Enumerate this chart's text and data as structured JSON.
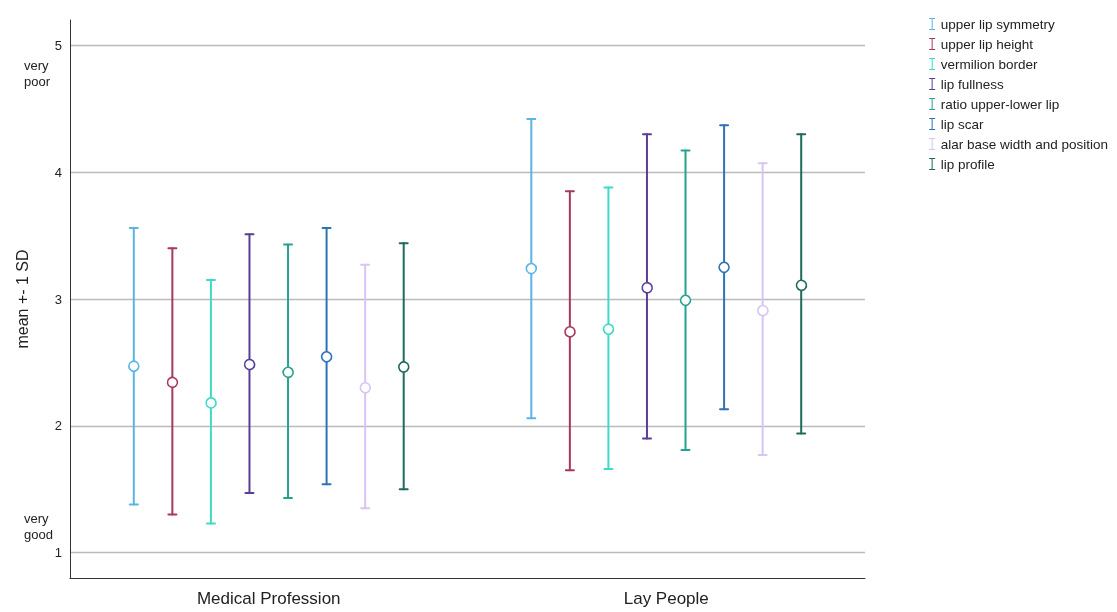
{
  "chart_data": {
    "type": "scatter",
    "ylabel": "mean +- 1 SD",
    "categories": [
      "Medical Profession",
      "Lay People"
    ],
    "ylim": [
      0.8,
      5.2
    ],
    "yticks": [
      1,
      2,
      3,
      4,
      5
    ],
    "grid": "y",
    "legend": "top right",
    "marker": "circle",
    "annotations": [
      "very poor",
      "very good"
    ],
    "series": [
      {
        "name": "upper lip symmetry",
        "color": "#5ab4e5",
        "values": [
          2.47,
          3.24
        ],
        "errors": [
          1.09,
          1.18
        ]
      },
      {
        "name": "upper lip height",
        "color": "#a8385d",
        "values": [
          2.35,
          2.75
        ],
        "errors": [
          1.05,
          1.1
        ]
      },
      {
        "name": "vermilion border",
        "color": "#40d9c6",
        "values": [
          2.19,
          2.77
        ],
        "errors": [
          0.96,
          1.11
        ]
      },
      {
        "name": "lip fullness",
        "color": "#5a3d99",
        "values": [
          2.49,
          3.1
        ],
        "errors": [
          1.02,
          1.2
        ]
      },
      {
        "name": "ratio upper-lower lip",
        "color": "#26a38f",
        "values": [
          2.43,
          2.99
        ],
        "errors": [
          1.0,
          1.18
        ]
      },
      {
        "name": "lip scar",
        "color": "#2d73b5",
        "values": [
          2.55,
          3.25
        ],
        "errors": [
          1.01,
          1.12
        ]
      },
      {
        "name": "alar base width and position",
        "color": "#d8c4f5",
        "values": [
          2.31,
          2.92
        ],
        "errors": [
          0.96,
          1.15
        ]
      },
      {
        "name": "lip profile",
        "color": "#1e6b5c",
        "values": [
          2.47,
          3.12
        ],
        "errors": [
          0.97,
          1.18
        ]
      }
    ]
  }
}
